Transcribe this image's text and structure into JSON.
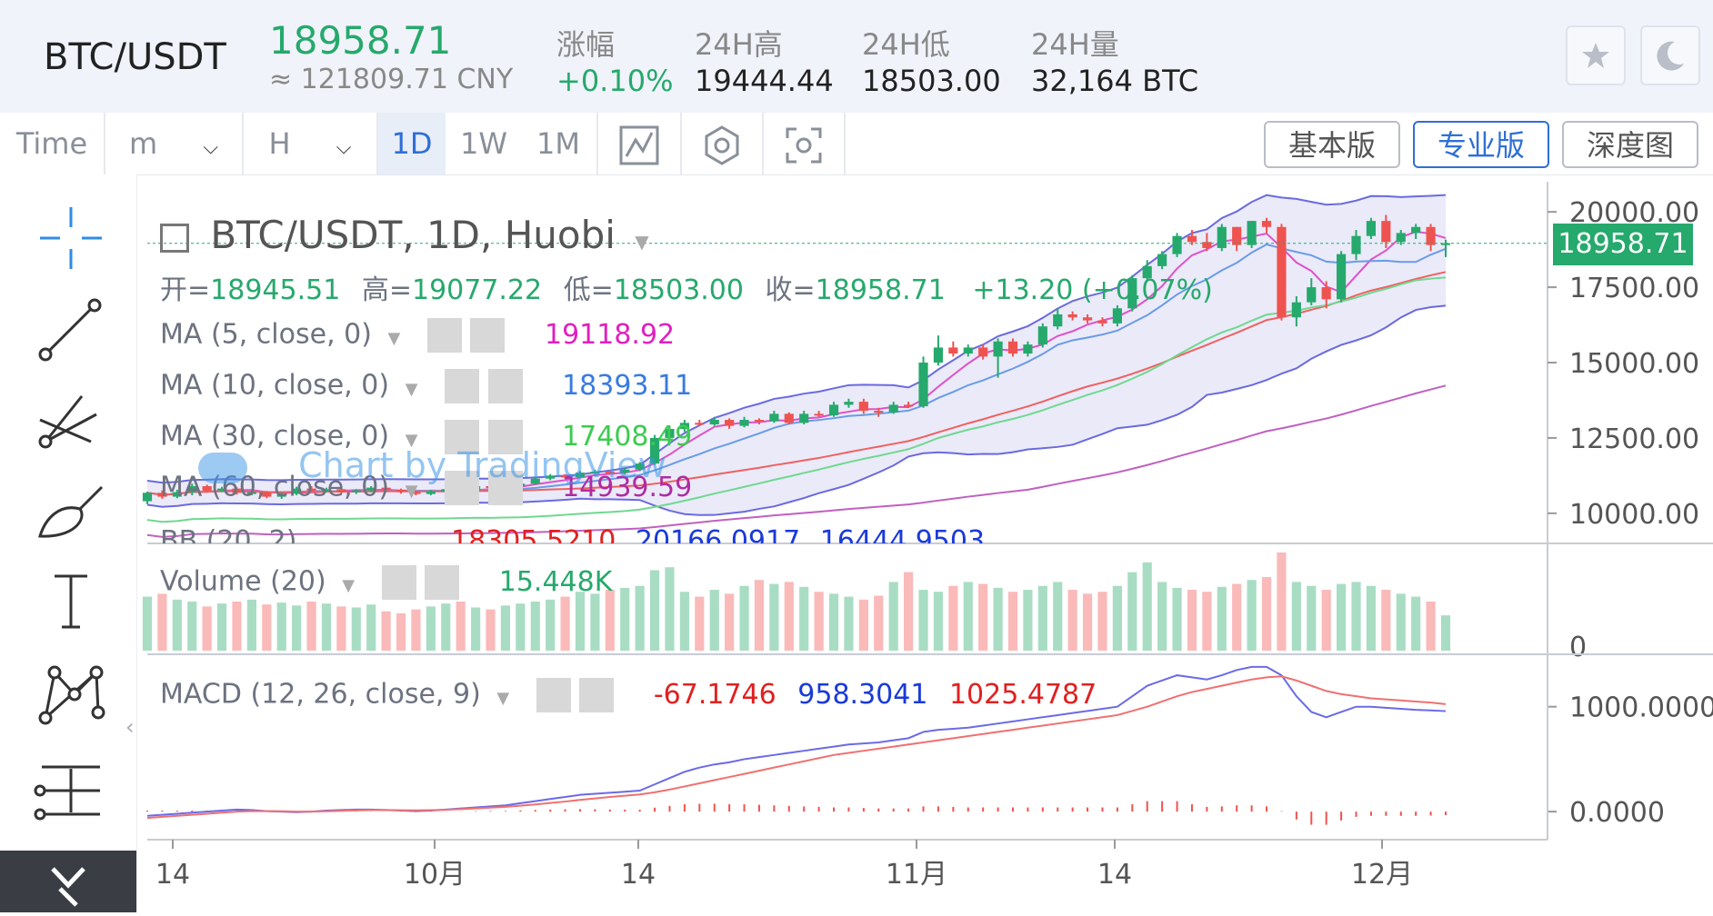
{
  "header": {
    "pair": "BTC/USDT",
    "price": "18958.71",
    "cny": "≈ 121809.71 CNY",
    "stats": [
      {
        "label": "涨幅",
        "value": "+0.10%",
        "color": "#26a96c"
      },
      {
        "label": "24H高",
        "value": "19444.44",
        "color": "#222222"
      },
      {
        "label": "24H低",
        "value": "18503.00",
        "color": "#222222"
      },
      {
        "label": "24H量",
        "value": "32,164 BTC",
        "color": "#222222"
      }
    ],
    "icons": [
      "star-icon",
      "moon-icon"
    ]
  },
  "toolbar": {
    "time": "Time",
    "minute": "m",
    "hour": "H",
    "periods": [
      "1D",
      "1W",
      "1M"
    ],
    "active_period": "1D",
    "views": [
      "基本版",
      "专业版",
      "深度图"
    ],
    "active_view": "专业版"
  },
  "legend": {
    "title": "BTC/USDT, 1D, Huobi",
    "ohlc": {
      "open_label": "开=",
      "open": "18945.51",
      "high_label": "高=",
      "high": "19077.22",
      "low_label": "低=",
      "low": "18503.00",
      "close_label": "收=",
      "close": "18958.71",
      "change": "+13.20 (+0.07%)"
    },
    "ma5": {
      "label": "MA (5, close, 0)",
      "value": "19118.92",
      "color": "#e020c0"
    },
    "ma10": {
      "label": "MA (10, close, 0)",
      "value": "18393.11",
      "color": "#3a7be0"
    },
    "ma30": {
      "label": "MA (30, close, 0)",
      "value": "17408.49",
      "color": "#3ccb50"
    },
    "ma60": {
      "label": "MA (60, close, 0)",
      "value": "14939.59",
      "color": "#b02ca0"
    },
    "bb": {
      "label": "BB (20, 2)",
      "v1": "18305.5210",
      "v2": "20166.0917",
      "v3": "16444.9503"
    },
    "watermark": "Chart by TradingView"
  },
  "price_axis": {
    "ticks": [
      "20000.00",
      "17500.00",
      "15000.00",
      "12500.00",
      "10000.00"
    ],
    "current": "18958.71"
  },
  "volume": {
    "label": "Volume (20)",
    "value": "15.448K",
    "axis_tick": "0"
  },
  "macd": {
    "label": "MACD (12, 26, close, 9)",
    "hist": "-67.1746",
    "macd": "958.3041",
    "signal": "1025.4787",
    "axis_ticks": [
      "1000.0000",
      "0.0000"
    ]
  },
  "x_axis": {
    "ticks": [
      "14",
      "10月",
      "14",
      "11月",
      "14",
      "12月"
    ]
  },
  "chart_data": {
    "type": "candlestick",
    "title": "BTC/USDT, 1D, Huobi",
    "ylim": [
      9000,
      21000
    ],
    "up_color": "#26a96c",
    "down_color": "#ef5350",
    "candles": [
      [
        10400,
        10680,
        10300,
        10720
      ],
      [
        10680,
        10550,
        10480,
        10760
      ],
      [
        10550,
        10700,
        10500,
        10780
      ],
      [
        10700,
        10900,
        10600,
        10980
      ],
      [
        10900,
        10750,
        10700,
        10950
      ],
      [
        10750,
        10820,
        10700,
        10880
      ],
      [
        10820,
        10680,
        10620,
        10860
      ],
      [
        10680,
        10700,
        10600,
        10760
      ],
      [
        10700,
        10550,
        10500,
        10740
      ],
      [
        10550,
        10650,
        10480,
        10700
      ],
      [
        10650,
        10820,
        10600,
        10880
      ],
      [
        10820,
        10750,
        10700,
        10900
      ],
      [
        10750,
        10800,
        10700,
        10850
      ],
      [
        10800,
        10700,
        10650,
        10840
      ],
      [
        10700,
        10760,
        10640,
        10800
      ],
      [
        10760,
        10850,
        10700,
        10900
      ],
      [
        10850,
        10780,
        10720,
        10900
      ],
      [
        10780,
        10700,
        10650,
        10820
      ],
      [
        10700,
        10640,
        10600,
        10740
      ],
      [
        10640,
        10720,
        10600,
        10780
      ],
      [
        10720,
        10800,
        10680,
        10840
      ],
      [
        10800,
        10760,
        10700,
        10850
      ],
      [
        10760,
        10900,
        10720,
        10950
      ],
      [
        10900,
        10850,
        10800,
        10960
      ],
      [
        10850,
        10920,
        10820,
        10980
      ],
      [
        10920,
        10980,
        10880,
        11050
      ],
      [
        10980,
        11150,
        10950,
        11200
      ],
      [
        11150,
        11250,
        11100,
        11300
      ],
      [
        11250,
        11200,
        11150,
        11300
      ],
      [
        11200,
        11350,
        11180,
        11400
      ],
      [
        11350,
        11380,
        11300,
        11450
      ],
      [
        11380,
        11350,
        11300,
        11420
      ],
      [
        11350,
        11450,
        11300,
        11500
      ],
      [
        11450,
        11650,
        11400,
        11700
      ],
      [
        11650,
        12500,
        11600,
        12600
      ],
      [
        12500,
        12800,
        12400,
        12900
      ],
      [
        12800,
        13000,
        12700,
        13100
      ],
      [
        13000,
        12950,
        12900,
        13100
      ],
      [
        12950,
        13100,
        12900,
        13200
      ],
      [
        13100,
        12900,
        12800,
        13150
      ],
      [
        12900,
        13100,
        12850,
        13200
      ],
      [
        13100,
        13050,
        12950,
        13150
      ],
      [
        13050,
        13300,
        13000,
        13400
      ],
      [
        13300,
        13000,
        12950,
        13350
      ],
      [
        13000,
        13300,
        12950,
        13400
      ],
      [
        13300,
        13250,
        13200,
        13400
      ],
      [
        13250,
        13600,
        13200,
        13700
      ],
      [
        13600,
        13700,
        13500,
        13800
      ],
      [
        13700,
        13400,
        13300,
        13800
      ],
      [
        13400,
        13350,
        13200,
        13500
      ],
      [
        13350,
        13600,
        13300,
        13700
      ],
      [
        13600,
        13550,
        13500,
        13700
      ],
      [
        13550,
        15000,
        13500,
        15200
      ],
      [
        15000,
        15500,
        14900,
        15900
      ],
      [
        15500,
        15300,
        15200,
        15700
      ],
      [
        15300,
        15500,
        15200,
        15600
      ],
      [
        15500,
        15200,
        15100,
        15600
      ],
      [
        15200,
        15700,
        14500,
        15800
      ],
      [
        15700,
        15300,
        15200,
        15800
      ],
      [
        15300,
        15600,
        15200,
        15700
      ],
      [
        15600,
        16200,
        15500,
        16300
      ],
      [
        16200,
        16600,
        16100,
        16800
      ],
      [
        16600,
        16500,
        16400,
        16700
      ],
      [
        16500,
        16400,
        16300,
        16600
      ],
      [
        16400,
        16300,
        16200,
        16500
      ],
      [
        16300,
        16800,
        16200,
        16900
      ],
      [
        16800,
        17800,
        16700,
        17900
      ],
      [
        17800,
        18200,
        17700,
        18400
      ],
      [
        18200,
        18600,
        18100,
        18700
      ],
      [
        18600,
        19200,
        18500,
        19300
      ],
      [
        19200,
        19000,
        18900,
        19400
      ],
      [
        19000,
        18800,
        18700,
        19300
      ],
      [
        18800,
        19500,
        18700,
        19600
      ],
      [
        19500,
        18900,
        18700,
        19500
      ],
      [
        18900,
        19700,
        18800,
        19700
      ],
      [
        19700,
        19500,
        19300,
        19800
      ],
      [
        19500,
        16500,
        16400,
        19600
      ],
      [
        16500,
        17000,
        16200,
        17200
      ],
      [
        17000,
        17500,
        16900,
        17800
      ],
      [
        17500,
        17100,
        16800,
        17700
      ],
      [
        17100,
        18600,
        17000,
        18700
      ],
      [
        18600,
        19200,
        18400,
        19400
      ],
      [
        19200,
        19700,
        19100,
        19800
      ],
      [
        19700,
        19000,
        18800,
        19900
      ],
      [
        19000,
        19300,
        18900,
        19400
      ],
      [
        19300,
        19500,
        19100,
        19600
      ],
      [
        19500,
        18900,
        18700,
        19600
      ],
      [
        18900,
        18960,
        18500,
        19080
      ]
    ],
    "volume_values": [
      0.55,
      0.58,
      0.52,
      0.5,
      0.45,
      0.48,
      0.5,
      0.52,
      0.47,
      0.49,
      0.46,
      0.5,
      0.48,
      0.45,
      0.44,
      0.47,
      0.4,
      0.38,
      0.42,
      0.45,
      0.48,
      0.5,
      0.44,
      0.42,
      0.46,
      0.48,
      0.5,
      0.52,
      0.55,
      0.6,
      0.58,
      0.62,
      0.64,
      0.66,
      0.82,
      0.85,
      0.6,
      0.55,
      0.62,
      0.58,
      0.66,
      0.72,
      0.68,
      0.7,
      0.65,
      0.6,
      0.58,
      0.55,
      0.52,
      0.56,
      0.7,
      0.8,
      0.62,
      0.6,
      0.66,
      0.7,
      0.68,
      0.64,
      0.6,
      0.62,
      0.66,
      0.7,
      0.62,
      0.58,
      0.6,
      0.66,
      0.8,
      0.9,
      0.7,
      0.64,
      0.62,
      0.6,
      0.65,
      0.68,
      0.72,
      0.75,
      1.0,
      0.7,
      0.66,
      0.62,
      0.68,
      0.7,
      0.66,
      0.62,
      0.58,
      0.55,
      0.5,
      0.36
    ],
    "macd_line": [
      -40,
      -30,
      -20,
      -10,
      0,
      10,
      20,
      15,
      5,
      0,
      -5,
      0,
      10,
      15,
      20,
      20,
      15,
      10,
      5,
      10,
      20,
      30,
      40,
      50,
      60,
      80,
      100,
      120,
      140,
      160,
      170,
      180,
      190,
      200,
      260,
      320,
      380,
      420,
      450,
      470,
      500,
      520,
      540,
      560,
      580,
      600,
      620,
      640,
      650,
      660,
      680,
      700,
      760,
      780,
      790,
      800,
      820,
      840,
      860,
      880,
      900,
      920,
      940,
      960,
      980,
      1000,
      1100,
      1200,
      1250,
      1300,
      1280,
      1260,
      1300,
      1350,
      1380,
      1380,
      1300,
      1100,
      950,
      900,
      950,
      1000,
      1000,
      990,
      980,
      970,
      965,
      958
    ],
    "signal_line": [
      -60,
      -50,
      -40,
      -30,
      -20,
      -10,
      0,
      5,
      5,
      3,
      0,
      0,
      3,
      8,
      12,
      15,
      15,
      13,
      12,
      14,
      18,
      24,
      30,
      38,
      46,
      56,
      68,
      82,
      96,
      112,
      126,
      140,
      152,
      164,
      184,
      210,
      240,
      270,
      300,
      330,
      360,
      390,
      420,
      450,
      480,
      510,
      540,
      560,
      580,
      600,
      620,
      640,
      660,
      680,
      700,
      720,
      740,
      760,
      780,
      800,
      820,
      840,
      860,
      880,
      900,
      920,
      960,
      1000,
      1050,
      1100,
      1140,
      1170,
      1200,
      1230,
      1260,
      1280,
      1290,
      1250,
      1200,
      1150,
      1120,
      1100,
      1080,
      1070,
      1060,
      1050,
      1040,
      1025
    ]
  }
}
